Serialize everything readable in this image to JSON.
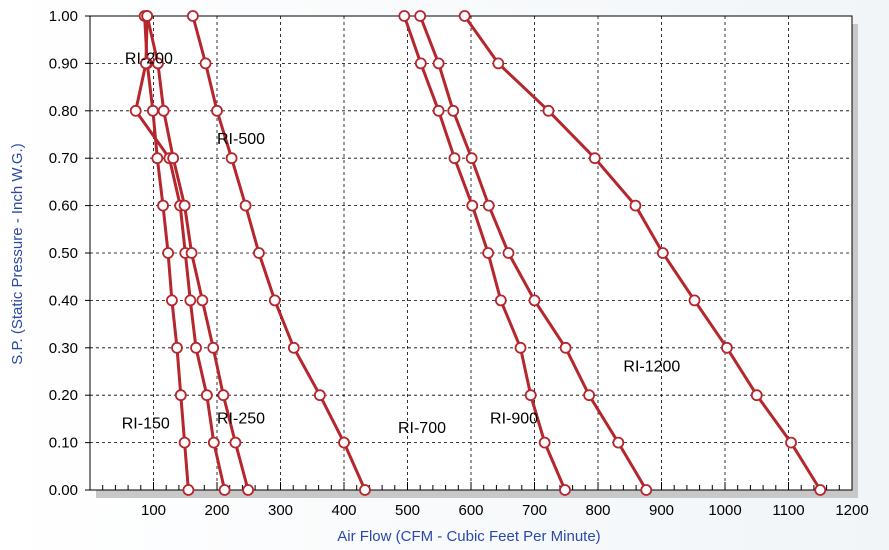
{
  "chart_data": {
    "type": "line",
    "title": "",
    "xlabel": "Air Flow (CFM - Cubic Feet Per Minute)",
    "ylabel": "S.P. (Static Pressure - Inch W.G.)",
    "xlim": [
      0,
      1200
    ],
    "ylim": [
      0,
      1.0
    ],
    "x_ticks": [
      100,
      200,
      300,
      400,
      500,
      600,
      700,
      800,
      900,
      1000,
      1100,
      1200
    ],
    "x_tick_labels": [
      "100",
      "200",
      "300",
      "400",
      "500",
      "600",
      "700",
      "800",
      "900",
      "1000",
      "1100",
      "1200"
    ],
    "y_ticks": [
      0,
      0.1,
      0.2,
      0.3,
      0.4,
      0.5,
      0.6,
      0.7,
      0.8,
      0.9,
      1.0
    ],
    "y_tick_labels": [
      "0.00",
      "0.10",
      "0.20",
      "0.30",
      "0.40",
      "0.50",
      "0.60",
      "0.70",
      "0.80",
      "0.90",
      "1.00"
    ],
    "grid": true,
    "legend": "none",
    "colors": {
      "line": "#b5262d",
      "marker_fill": "#ffffff",
      "axis_title": "#2b4aa8",
      "grid": "#000000",
      "plot_background": "#ffffff",
      "shadow": "#c8c8c8"
    },
    "series": [
      {
        "name": "RI-150",
        "x": [
          155,
          149,
          143,
          137,
          129,
          123,
          115,
          106,
          99,
          90,
          86
        ],
        "y": [
          0.0,
          0.1,
          0.2,
          0.3,
          0.4,
          0.5,
          0.6,
          0.7,
          0.8,
          0.9,
          1.0
        ]
      },
      {
        "name": "RI-200",
        "x": [
          212,
          195,
          184,
          167,
          158,
          150,
          142,
          125,
          72,
          88,
          90
        ],
        "y": [
          0.0,
          0.1,
          0.2,
          0.3,
          0.4,
          0.5,
          0.6,
          0.7,
          0.8,
          0.9,
          1.0
        ]
      },
      {
        "name": "RI-250",
        "x": [
          249,
          229,
          210,
          194,
          177,
          160,
          149,
          131,
          116,
          107,
          90
        ],
        "y": [
          0.0,
          0.1,
          0.2,
          0.3,
          0.4,
          0.5,
          0.6,
          0.7,
          0.8,
          0.9,
          1.0
        ]
      },
      {
        "name": "RI-500",
        "x": [
          433,
          400,
          362,
          321,
          291,
          266,
          245,
          223,
          200,
          182,
          162
        ],
        "y": [
          0.0,
          0.1,
          0.2,
          0.3,
          0.4,
          0.5,
          0.6,
          0.7,
          0.8,
          0.9,
          1.0
        ]
      },
      {
        "name": "RI-700",
        "x": [
          748,
          716,
          694,
          678,
          647,
          627,
          602,
          574,
          549,
          521,
          495
        ],
        "y": [
          0.0,
          0.1,
          0.2,
          0.3,
          0.4,
          0.5,
          0.6,
          0.7,
          0.8,
          0.9,
          1.0
        ]
      },
      {
        "name": "RI-900",
        "x": [
          876,
          832,
          786,
          749,
          700,
          659,
          628,
          601,
          572,
          549,
          520
        ],
        "y": [
          0.0,
          0.1,
          0.2,
          0.3,
          0.4,
          0.5,
          0.6,
          0.7,
          0.8,
          0.9,
          1.0
        ]
      },
      {
        "name": "RI-1200",
        "x": [
          1150,
          1104,
          1050,
          1003,
          952,
          902,
          859,
          795,
          722,
          643,
          590
        ],
        "y": [
          0.0,
          0.1,
          0.2,
          0.3,
          0.4,
          0.5,
          0.6,
          0.7,
          0.8,
          0.9,
          1.0
        ]
      }
    ],
    "annotations": [
      {
        "text": "RI-200",
        "x": 55,
        "y": 0.9
      },
      {
        "text": "RI-500",
        "x": 200,
        "y": 0.73
      },
      {
        "text": "RI-150",
        "x": 50,
        "y": 0.13
      },
      {
        "text": "RI-250",
        "x": 200,
        "y": 0.14
      },
      {
        "text": "RI-700",
        "x": 485,
        "y": 0.12
      },
      {
        "text": "RI-900",
        "x": 630,
        "y": 0.14
      },
      {
        "text": "RI-1200",
        "x": 840,
        "y": 0.25
      }
    ]
  }
}
